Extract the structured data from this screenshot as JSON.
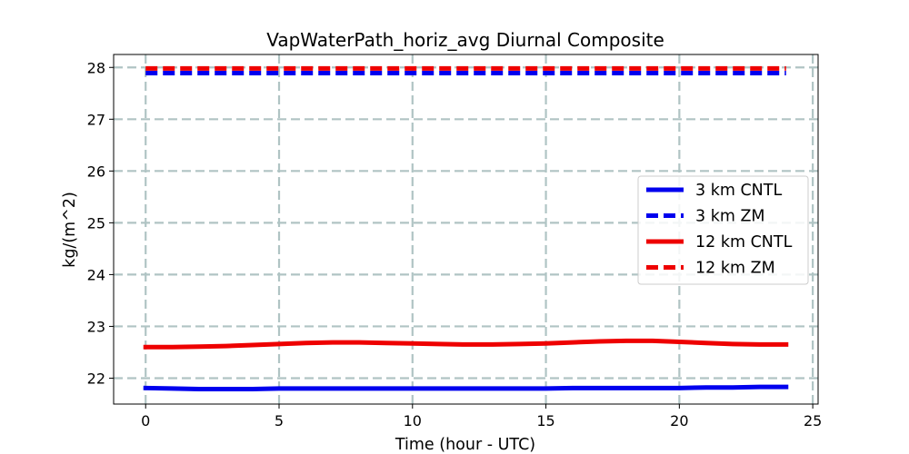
{
  "chart_data": {
    "type": "line",
    "title": "VapWaterPath_horiz_avg Diurnal Composite",
    "xlabel": "Time (hour - UTC)",
    "ylabel": "kg/(m^2)",
    "xlim": [
      -1.2,
      25.2
    ],
    "ylim": [
      21.5,
      28.25
    ],
    "xticks": [
      0,
      5,
      10,
      15,
      20,
      25
    ],
    "yticks": [
      22,
      23,
      24,
      25,
      26,
      27,
      28
    ],
    "xtick_labels": [
      "0",
      "5",
      "10",
      "15",
      "20",
      "25"
    ],
    "ytick_labels": [
      "22",
      "23",
      "24",
      "25",
      "26",
      "27",
      "28"
    ],
    "grid": true,
    "legend_position": "center-right",
    "x": [
      0,
      1,
      2,
      3,
      4,
      5,
      6,
      7,
      8,
      9,
      10,
      11,
      12,
      13,
      14,
      15,
      16,
      17,
      18,
      19,
      20,
      21,
      22,
      23,
      24
    ],
    "series": [
      {
        "name": "3 km CNTL",
        "color": "#0000ee",
        "style": "solid",
        "values": [
          21.81,
          21.8,
          21.79,
          21.79,
          21.79,
          21.8,
          21.8,
          21.8,
          21.8,
          21.8,
          21.8,
          21.8,
          21.8,
          21.8,
          21.8,
          21.8,
          21.81,
          21.81,
          21.81,
          21.81,
          21.81,
          21.82,
          21.82,
          21.83,
          21.83
        ]
      },
      {
        "name": "3 km ZM",
        "color": "#0000ee",
        "style": "dashed",
        "values": [
          27.89,
          27.89,
          27.89,
          27.89,
          27.89,
          27.89,
          27.89,
          27.89,
          27.89,
          27.89,
          27.89,
          27.89,
          27.89,
          27.89,
          27.89,
          27.89,
          27.89,
          27.89,
          27.89,
          27.89,
          27.89,
          27.89,
          27.89,
          27.89,
          27.89
        ]
      },
      {
        "name": "12 km CNTL",
        "color": "#ee0000",
        "style": "solid",
        "values": [
          22.6,
          22.6,
          22.61,
          22.62,
          22.64,
          22.66,
          22.68,
          22.69,
          22.69,
          22.68,
          22.67,
          22.66,
          22.65,
          22.65,
          22.66,
          22.67,
          22.69,
          22.71,
          22.72,
          22.72,
          22.7,
          22.68,
          22.66,
          22.65,
          22.65
        ]
      },
      {
        "name": "12 km ZM",
        "color": "#ee0000",
        "style": "dashed",
        "values": [
          27.98,
          27.98,
          27.98,
          27.98,
          27.98,
          27.98,
          27.98,
          27.98,
          27.98,
          27.98,
          27.98,
          27.98,
          27.98,
          27.98,
          27.98,
          27.98,
          27.98,
          27.98,
          27.98,
          27.98,
          27.98,
          27.98,
          27.98,
          27.98,
          27.98
        ]
      }
    ]
  }
}
